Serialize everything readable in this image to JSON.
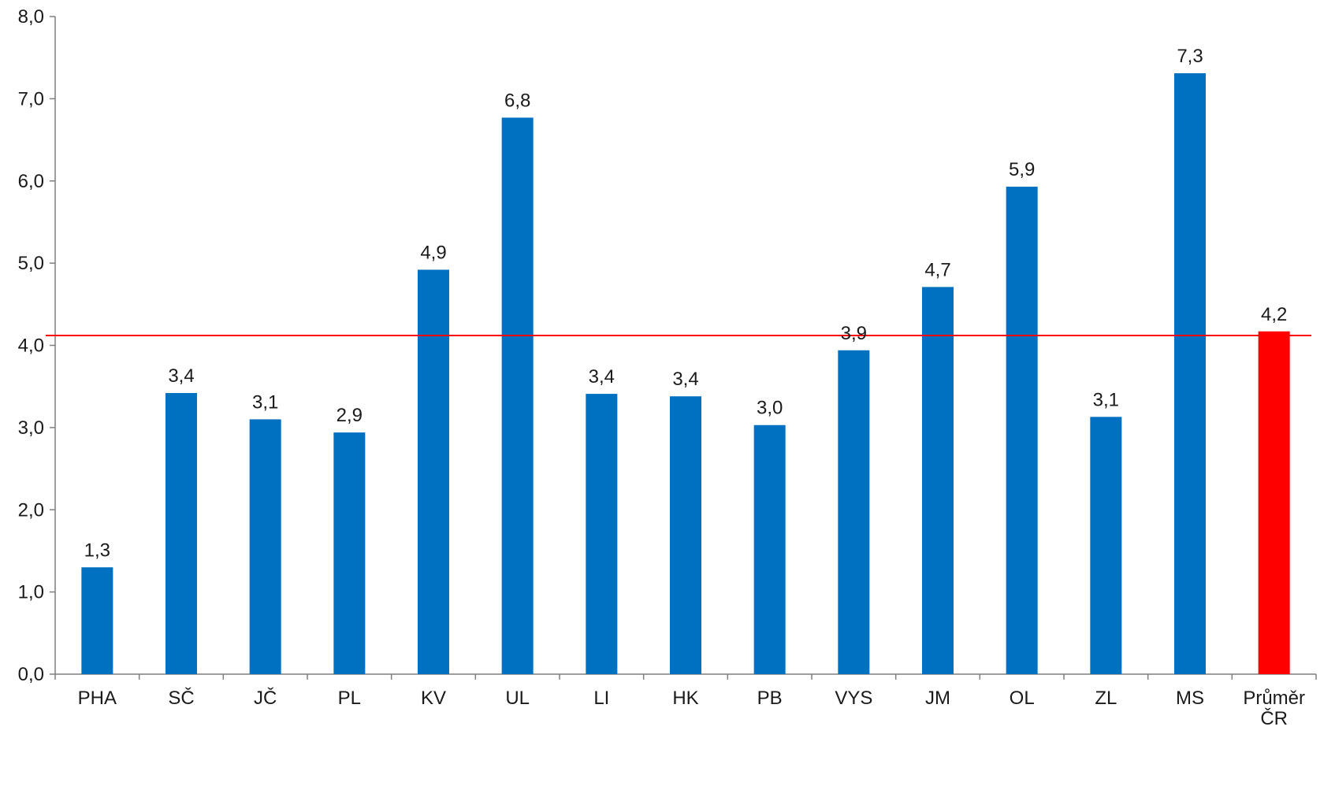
{
  "chart_data": {
    "type": "bar",
    "categories": [
      "PHA",
      "SČ",
      "JČ",
      "PL",
      "KV",
      "UL",
      "LI",
      "HK",
      "PB",
      "VYS",
      "JM",
      "OL",
      "ZL",
      "MS",
      "Průměr ČR"
    ],
    "category_lines": [
      [
        "PHA"
      ],
      [
        "SČ"
      ],
      [
        "JČ"
      ],
      [
        "PL"
      ],
      [
        "KV"
      ],
      [
        "UL"
      ],
      [
        "LI"
      ],
      [
        "HK"
      ],
      [
        "PB"
      ],
      [
        "VYS"
      ],
      [
        "JM"
      ],
      [
        "OL"
      ],
      [
        "ZL"
      ],
      [
        "MS"
      ],
      [
        "Průměr",
        "ČR"
      ]
    ],
    "values": [
      1.3,
      3.42,
      3.1,
      2.94,
      4.92,
      6.77,
      3.41,
      3.38,
      3.03,
      3.94,
      4.71,
      5.93,
      3.13,
      7.31,
      4.17
    ],
    "data_labels": [
      "1,3",
      "3,4",
      "3,1",
      "2,9",
      "4,9",
      "6,8",
      "3,4",
      "3,4",
      "3,0",
      "3,9",
      "4,7",
      "5,9",
      "3,1",
      "7,3",
      "4,2"
    ],
    "ylim": [
      0,
      8
    ],
    "yticks": [
      0,
      1,
      2,
      3,
      4,
      5,
      6,
      7,
      8
    ],
    "ytick_labels": [
      "0,0",
      "1,0",
      "2,0",
      "3,0",
      "4,0",
      "5,0",
      "6,0",
      "7,0",
      "8,0"
    ],
    "reference_line": 4.12,
    "highlight_index": 14,
    "colors": {
      "bar": "#0070c0",
      "highlight_bar": "#ff0000",
      "reference_line": "#ff0000",
      "axis": "#7f7f7f",
      "text": "#1a1a1a"
    },
    "grid": false,
    "legend": "none",
    "title": "",
    "xlabel": "",
    "ylabel": ""
  }
}
